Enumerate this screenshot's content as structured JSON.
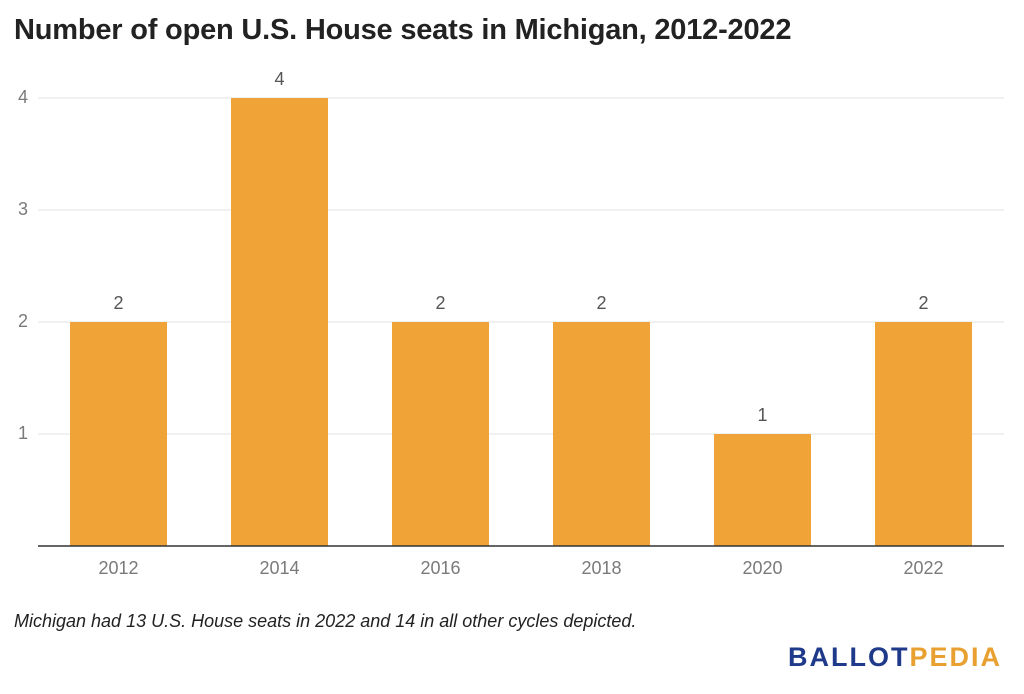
{
  "title": "Number of open U.S. House seats in Michigan, 2012-2022",
  "note": "Michigan had 13 U.S. House seats in 2022 and 14 in all other cycles depicted.",
  "logo": {
    "part1": "BALLOT",
    "part2": "PEDIA"
  },
  "colors": {
    "bar": "#f0a336",
    "grid": "#e3e3e3",
    "axis": "#333333"
  },
  "chart_data": {
    "type": "bar",
    "title": "Number of open U.S. House seats in Michigan, 2012-2022",
    "xlabel": "",
    "ylabel": "",
    "categories": [
      "2012",
      "2014",
      "2016",
      "2018",
      "2020",
      "2022"
    ],
    "values": [
      2,
      4,
      2,
      2,
      1,
      2
    ],
    "yticks": [
      1,
      2,
      3,
      4
    ],
    "ylim": [
      0,
      4
    ],
    "grid": true,
    "legend": "none",
    "data_labels": true
  }
}
